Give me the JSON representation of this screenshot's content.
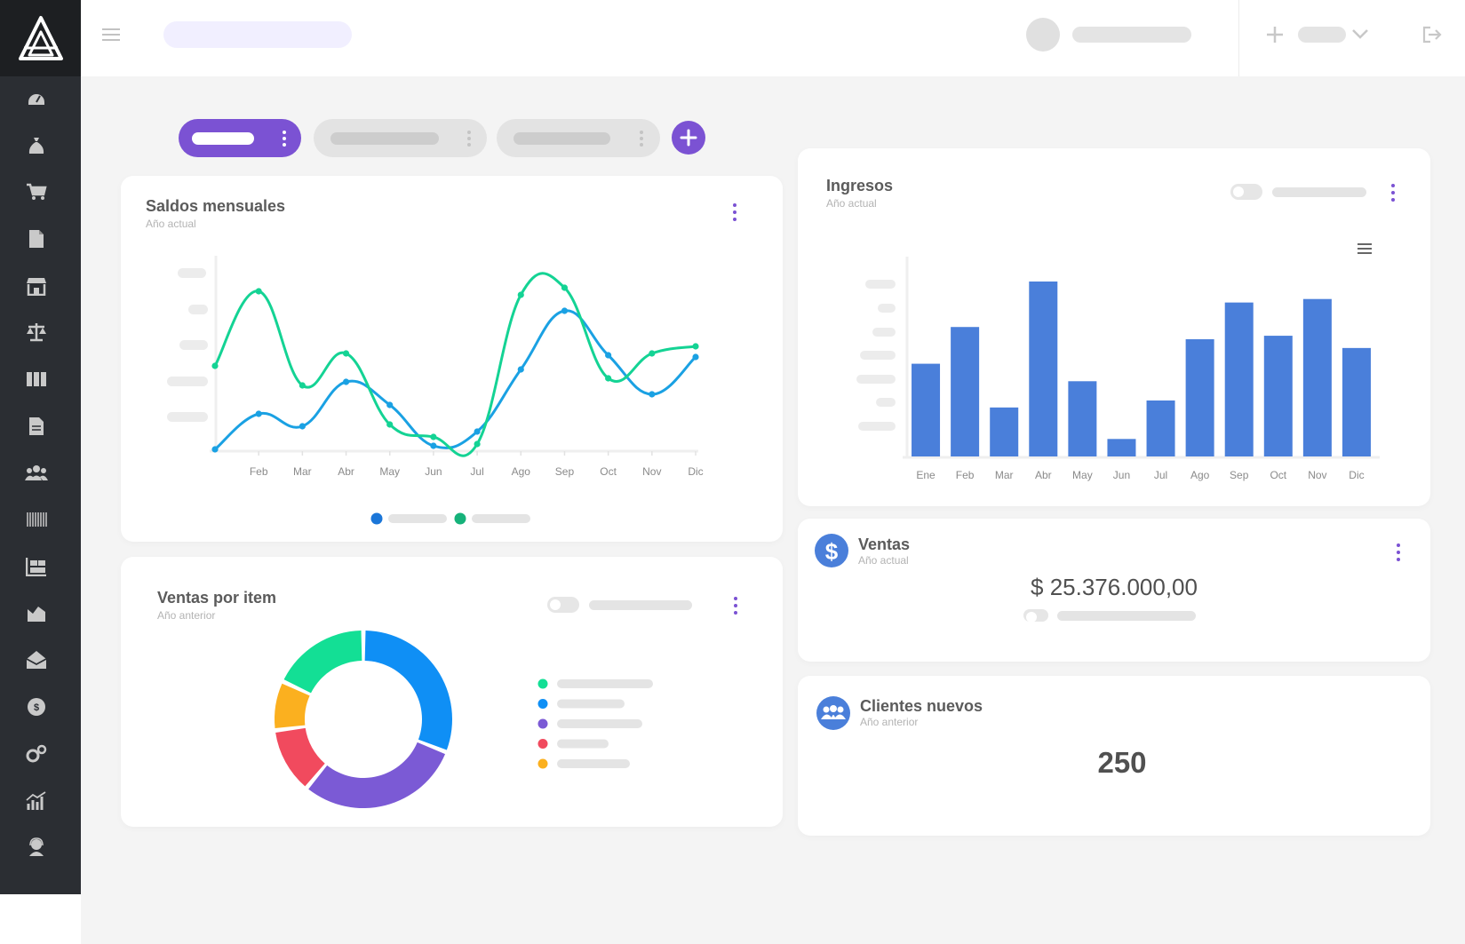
{
  "app": {
    "accent": "#7b52d3",
    "bar_color": "#4a7fda"
  },
  "sidebar": {
    "logo": "logo-icon",
    "items": [
      "dashboard-icon",
      "money-bag-icon",
      "cart-icon",
      "document-icon",
      "store-icon",
      "scale-icon",
      "inventory-icon",
      "invoice-icon",
      "users-icon",
      "barcode-icon",
      "warehouse-icon",
      "stats-icon",
      "inbox-icon",
      "coin-icon",
      "settings-icon",
      "reports-icon",
      "support-icon"
    ]
  },
  "header": {
    "menu_icon": "hamburger-icon",
    "add_icon": "plus-icon",
    "logout_icon": "logout-icon"
  },
  "saldos": {
    "title": "Saldos mensuales",
    "subtitle": "Año actual"
  },
  "ingresos": {
    "title": "Ingresos",
    "subtitle": "Año actual"
  },
  "ventas": {
    "title": "Ventas",
    "subtitle": "Año actual",
    "amount": "$ 25.376.000,00",
    "icon": "dollar-icon"
  },
  "ventas_item": {
    "title": "Ventas por item",
    "subtitle": "Año anterior"
  },
  "clientes": {
    "title": "Clientes nuevos",
    "subtitle": "Año anterior",
    "value": "250",
    "icon": "group-icon"
  },
  "chart_data": [
    {
      "type": "line",
      "x": [
        "",
        "Feb",
        "Mar",
        "Abr",
        "May",
        "Jun",
        "Jul",
        "Ago",
        "Sep",
        "Oct",
        "Nov",
        "Dic"
      ],
      "series": [
        {
          "color": "#1aa1e3",
          "values": [
            0,
            20,
            13,
            38,
            25,
            2,
            10,
            45,
            78,
            53,
            31,
            52
          ]
        },
        {
          "color": "#14d394",
          "values": [
            47,
            89,
            36,
            54,
            14,
            7,
            3,
            87,
            91,
            40,
            54,
            58
          ]
        }
      ],
      "ylim": [
        0,
        100
      ]
    },
    {
      "type": "bar",
      "categories": [
        "Ene",
        "Feb",
        "Mar",
        "Abr",
        "May",
        "Jun",
        "Jul",
        "Ago",
        "Sep",
        "Oct",
        "Nov",
        "Dic"
      ],
      "values": [
        53,
        74,
        28,
        100,
        43,
        10,
        32,
        67,
        88,
        69,
        90,
        62
      ],
      "ylim": [
        0,
        100
      ]
    },
    {
      "type": "pie",
      "slices": [
        {
          "value": 31,
          "color": "#0f8ff5"
        },
        {
          "value": 30,
          "color": "#7b5ad5"
        },
        {
          "value": 12,
          "color": "#f14a5e"
        },
        {
          "value": 9,
          "color": "#fbb01f"
        },
        {
          "value": 18,
          "color": "#13df95"
        }
      ]
    }
  ]
}
